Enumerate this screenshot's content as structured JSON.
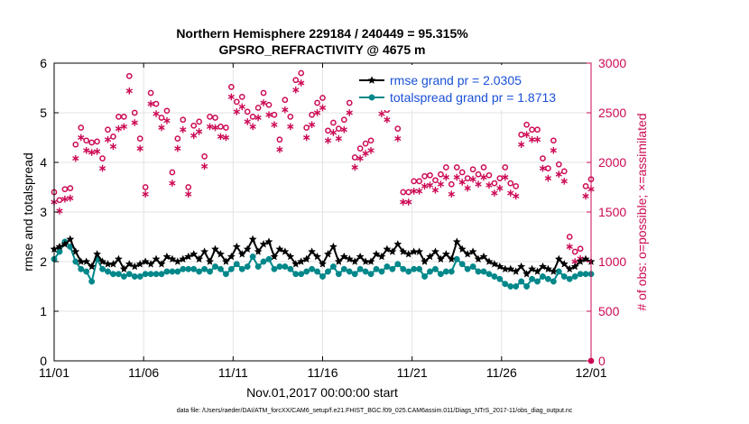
{
  "chart_data": {
    "type": "line",
    "title_line1": "Northern Hemisphere 229184 / 240449 = 95.315%",
    "title_line2": "GPSRO_REFRACTIVITY @ 4675 m",
    "xlabel": "Nov.01,2017 00:00:00 start",
    "ylabel_left": "rmse and totalspread",
    "ylabel_right": "# of obs: o=possible; ×=assimilated",
    "footnote": "data file: /Users/raeder/DAI/ATM_forcXX/CAM6_setup/f.e21.FHIST_BGC.f09_025.CAM6assim.011/Diags_NTrS_2017-11/obs_diag_output.nc",
    "xlim": [
      0,
      30
    ],
    "ylim_left": [
      0,
      6
    ],
    "ylim_right": [
      0,
      3000
    ],
    "x_ticks": [
      {
        "value": 0,
        "label": "11/01"
      },
      {
        "value": 5,
        "label": "11/06"
      },
      {
        "value": 10,
        "label": "11/11"
      },
      {
        "value": 15,
        "label": "11/16"
      },
      {
        "value": 20,
        "label": "11/21"
      },
      {
        "value": 25,
        "label": "11/26"
      },
      {
        "value": 30,
        "label": "12/01"
      }
    ],
    "y_ticks_left": [
      0,
      1,
      2,
      3,
      4,
      5,
      6
    ],
    "y_ticks_right": [
      0,
      500,
      1000,
      1500,
      2000,
      2500,
      3000
    ],
    "grid": true,
    "legend_position": "top-right",
    "colors": {
      "rmse": "#000000",
      "totalspread": "#00878a",
      "obs_count": "#cc0a55",
      "legend_text": "#1a50d8"
    },
    "series": [
      {
        "name": "rmse grand pr = 2.0305",
        "axis": "left",
        "color": "#000000",
        "marker": "star",
        "values": [
          2.25,
          2.3,
          2.35,
          2.45,
          2.2,
          2.0,
          2.0,
          1.9,
          2.15,
          2.0,
          1.95,
          1.95,
          2.05,
          1.85,
          1.95,
          1.9,
          1.95,
          2.0,
          1.95,
          2.05,
          1.95,
          2.1,
          2.05,
          2.0,
          2.05,
          2.1,
          2.15,
          2.05,
          2.2,
          2.0,
          2.25,
          2.15,
          2.0,
          2.1,
          2.3,
          2.15,
          2.25,
          2.45,
          2.2,
          2.35,
          2.4,
          2.1,
          2.25,
          2.2,
          2.1,
          1.95,
          2.0,
          2.05,
          2.2,
          2.1,
          1.95,
          2.15,
          2.3,
          2.0,
          2.1,
          2.05,
          2.0,
          2.1,
          2.0,
          2.0,
          2.15,
          2.1,
          2.25,
          2.2,
          2.35,
          2.2,
          2.15,
          2.2,
          2.2,
          2.0,
          2.1,
          2.2,
          2.05,
          2.15,
          2.05,
          2.4,
          2.25,
          2.15,
          2.2,
          2.05,
          2.1,
          2.0,
          1.95,
          1.9,
          1.85,
          1.85,
          1.8,
          1.9,
          1.75,
          1.85,
          1.8,
          1.9,
          1.85,
          1.8,
          2.05,
          1.95,
          1.85,
          1.9,
          2.0,
          2.05,
          2.0
        ]
      },
      {
        "name": "totalspread grand pr = 1.8713",
        "axis": "left",
        "color": "#00878a",
        "marker": "circle",
        "values": [
          2.05,
          2.2,
          2.4,
          2.3,
          2.0,
          1.85,
          1.8,
          1.6,
          2.05,
          1.85,
          1.8,
          1.75,
          1.75,
          1.7,
          1.75,
          1.7,
          1.7,
          1.75,
          1.75,
          1.75,
          1.75,
          1.8,
          1.8,
          1.8,
          1.85,
          1.85,
          1.85,
          1.8,
          1.85,
          1.8,
          1.9,
          1.85,
          1.75,
          1.85,
          1.95,
          1.85,
          1.9,
          2.1,
          1.9,
          2.0,
          2.05,
          1.85,
          1.9,
          1.9,
          1.85,
          1.75,
          1.75,
          1.8,
          1.85,
          1.8,
          1.7,
          1.8,
          1.9,
          1.75,
          1.85,
          1.8,
          1.75,
          1.85,
          1.8,
          1.75,
          1.85,
          1.8,
          1.9,
          1.85,
          1.95,
          1.85,
          1.8,
          1.85,
          1.85,
          1.7,
          1.8,
          1.85,
          1.75,
          1.8,
          1.8,
          2.05,
          1.95,
          1.85,
          1.9,
          1.8,
          1.8,
          1.75,
          1.7,
          1.65,
          1.55,
          1.5,
          1.5,
          1.6,
          1.5,
          1.65,
          1.6,
          1.7,
          1.65,
          1.6,
          1.8,
          1.7,
          1.65,
          1.7,
          1.75,
          1.75,
          1.75
        ]
      },
      {
        "name": "# of obs possible",
        "axis": "right",
        "color": "#cc0a55",
        "marker": "circle-open",
        "values": [
          1700,
          1620,
          1730,
          1740,
          2180,
          2350,
          2220,
          2200,
          2210,
          2040,
          2330,
          2260,
          2460,
          2460,
          2870,
          2500,
          2240,
          1750,
          2700,
          2590,
          2450,
          2520,
          1900,
          2240,
          2430,
          1750,
          2370,
          2410,
          2060,
          2460,
          2450,
          2360,
          2350,
          2760,
          2610,
          2660,
          2510,
          2460,
          2550,
          2700,
          2580,
          2480,
          2230,
          2630,
          2460,
          2830,
          2900,
          2350,
          2480,
          2600,
          2650,
          2320,
          2400,
          2340,
          2430,
          2600,
          2050,
          2140,
          2190,
          2220,
          2720,
          2590,
          2530,
          2700,
          2340,
          1700,
          1700,
          1810,
          1810,
          1860,
          1870,
          1820,
          1880,
          1950,
          1780,
          1950,
          1900,
          1840,
          1930,
          1880,
          1950,
          1870,
          1790,
          1840,
          1950,
          1790,
          1760,
          2280,
          2380,
          2330,
          2330,
          2040,
          1940,
          2220,
          1980,
          1910,
          1250,
          1100,
          1130,
          1760,
          1830
        ]
      },
      {
        "name": "# of obs assimilated",
        "axis": "right",
        "color": "#cc0a55",
        "marker": "asterisk",
        "values": [
          1600,
          1510,
          1630,
          1640,
          2040,
          2250,
          2120,
          2100,
          2110,
          1940,
          2230,
          2160,
          2340,
          2360,
          2720,
          2400,
          2140,
          1680,
          2590,
          2490,
          2350,
          2420,
          1790,
          2140,
          2330,
          1680,
          2270,
          2310,
          1960,
          2360,
          2350,
          2260,
          2250,
          2660,
          2510,
          2560,
          2410,
          2360,
          2450,
          2600,
          2480,
          2380,
          2130,
          2530,
          2360,
          2730,
          2800,
          2250,
          2380,
          2500,
          2550,
          2220,
          2300,
          2240,
          2330,
          2500,
          1950,
          2040,
          2090,
          2120,
          2620,
          2490,
          2430,
          2600,
          2240,
          1600,
          1600,
          1710,
          1710,
          1760,
          1770,
          1720,
          1780,
          1850,
          1680,
          1850,
          1800,
          1740,
          1830,
          1780,
          1850,
          1770,
          1690,
          1740,
          1850,
          1690,
          1660,
          2180,
          2280,
          2230,
          2230,
          1940,
          1840,
          2120,
          1880,
          1810,
          1150,
          1000,
          1030,
          1660,
          1730
        ]
      }
    ]
  }
}
